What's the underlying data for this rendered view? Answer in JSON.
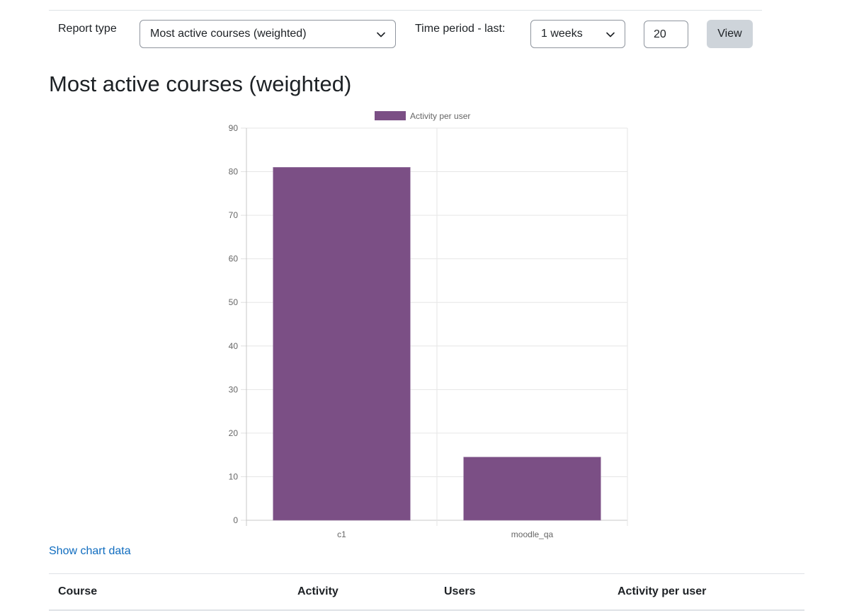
{
  "filters": {
    "report_type_label": "Report type",
    "report_type_value": "Most active courses (weighted)",
    "time_period_label": "Time period - last:",
    "time_period_value": "1 weeks",
    "count_value": "20",
    "view_button_label": "View"
  },
  "page_title": "Most active courses (weighted)",
  "chart_data": {
    "type": "bar",
    "categories": [
      "c1",
      "moodle_qa"
    ],
    "series": [
      {
        "name": "Activity per user",
        "values": [
          81,
          14.5
        ],
        "color": "#7b4f85"
      }
    ],
    "ylim": [
      0,
      90
    ],
    "yticks": [
      0,
      10,
      20,
      30,
      40,
      50,
      60,
      70,
      80,
      90
    ],
    "grid": true,
    "legend_position": "top"
  },
  "show_chart_data_link": "Show chart data",
  "table": {
    "columns": [
      "Course",
      "Activity",
      "Users",
      "Activity per user"
    ]
  },
  "colors": {
    "link": "#0f6cbf",
    "bar": "#7b4f85",
    "button": "#ced4da"
  }
}
